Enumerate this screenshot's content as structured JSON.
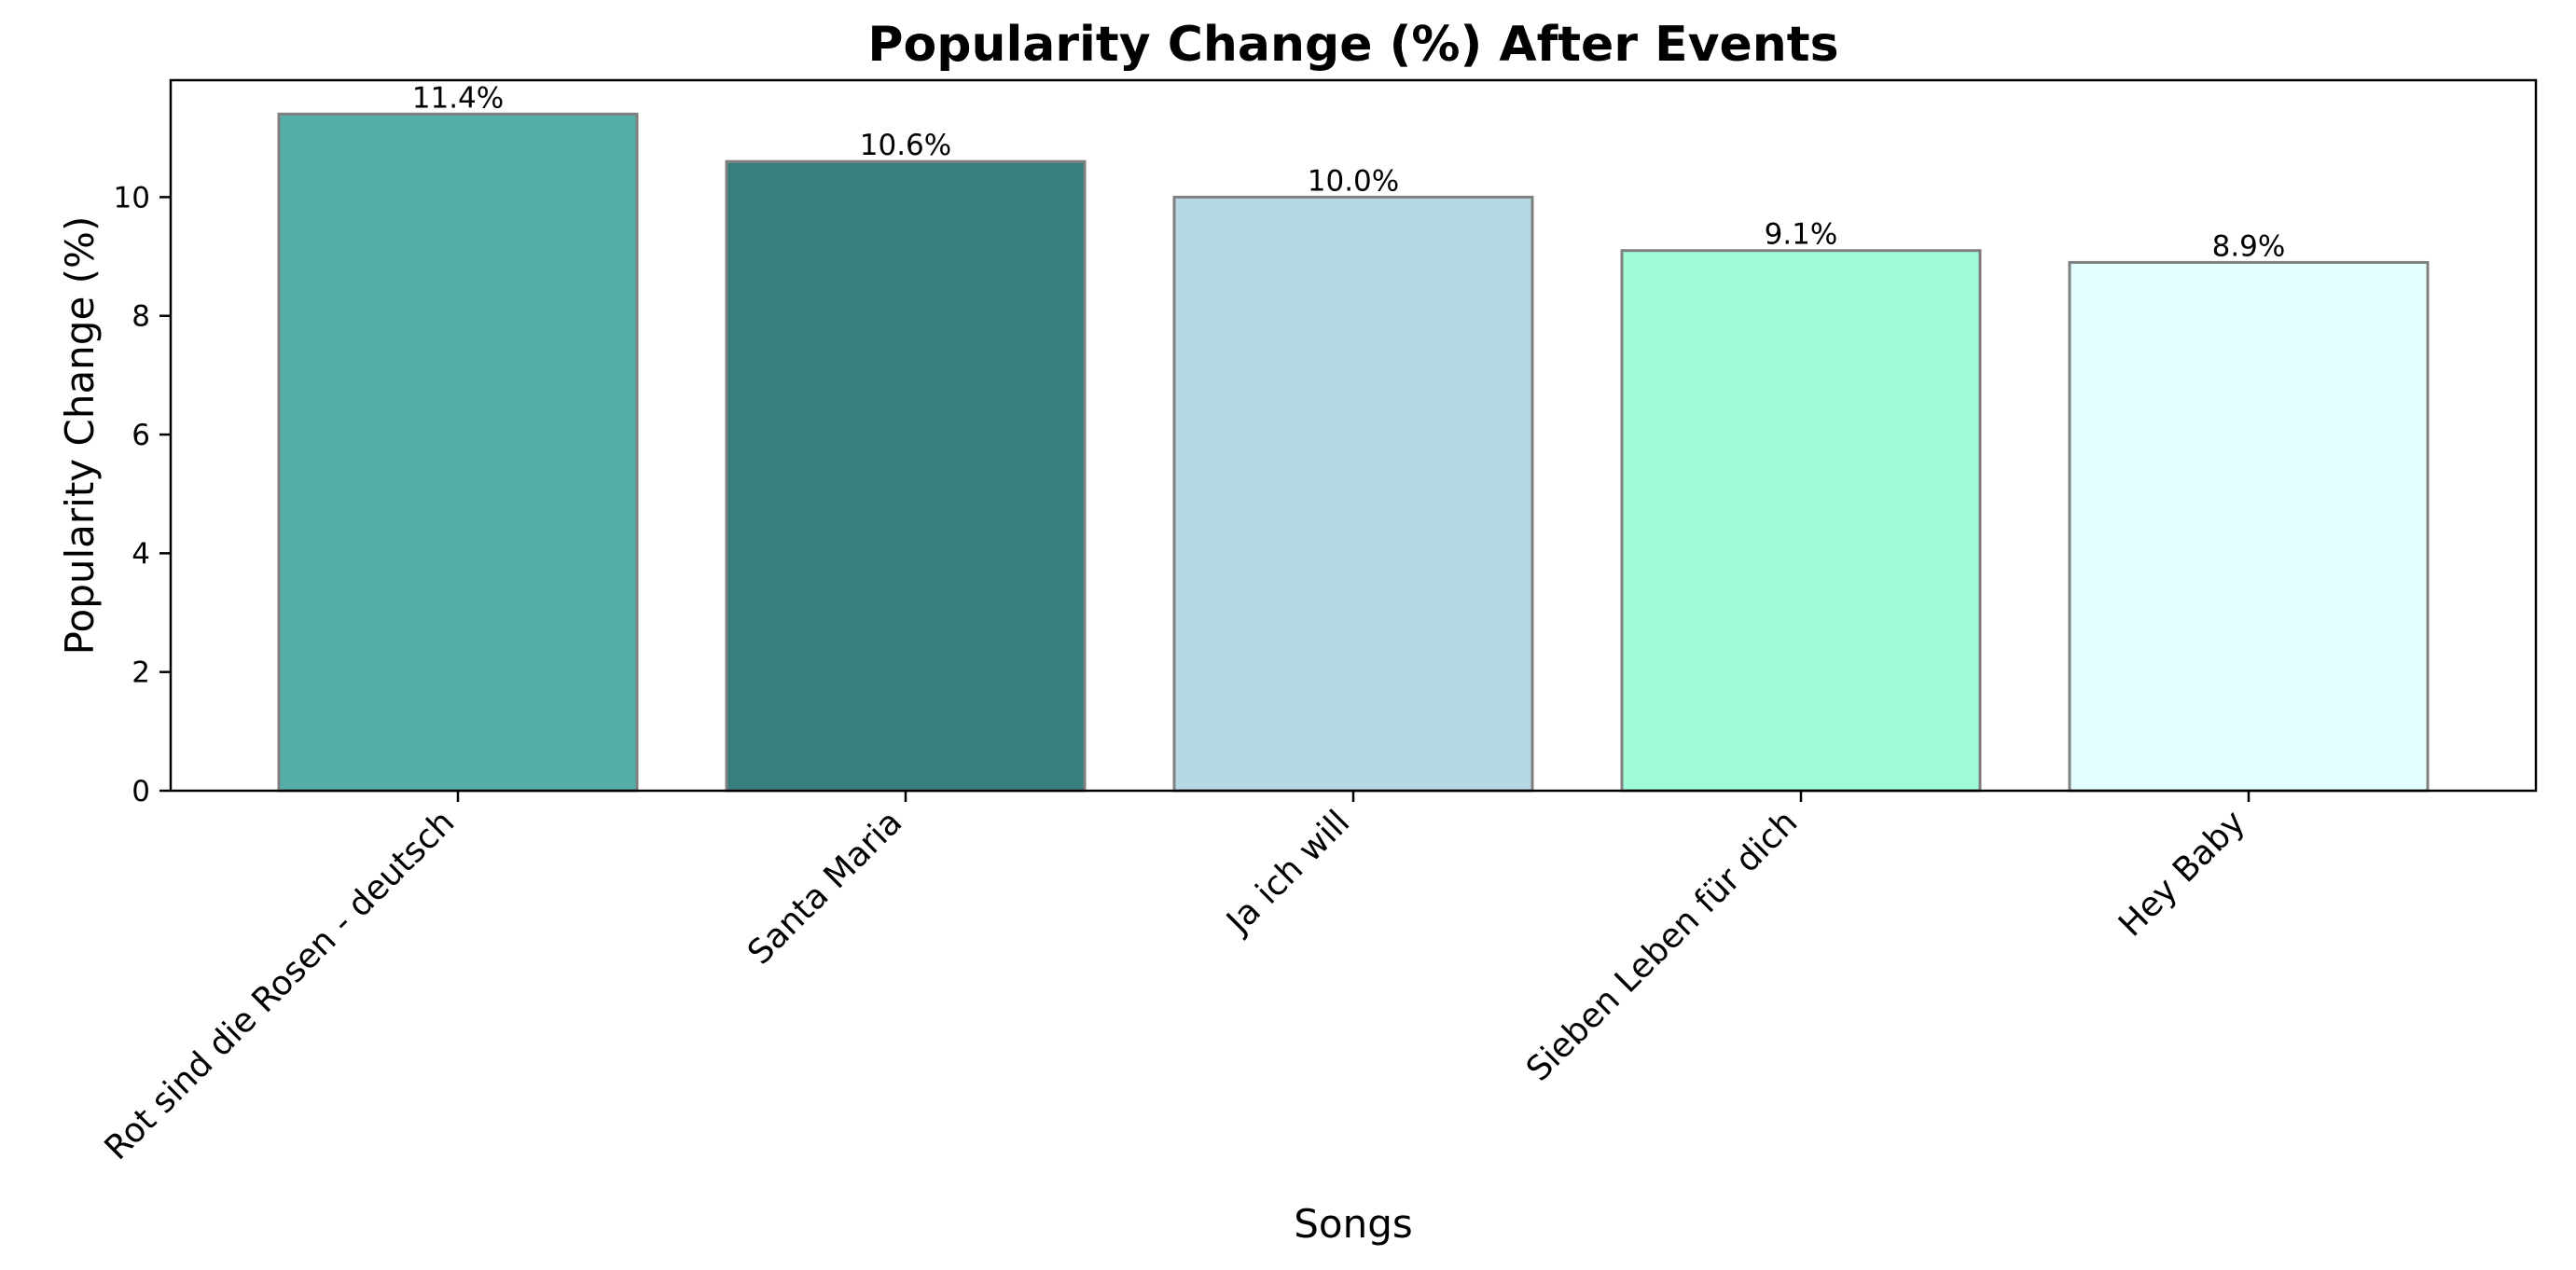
{
  "chart_data": {
    "type": "bar",
    "title": "Popularity Change (%) After Events",
    "xlabel": "Songs",
    "ylabel": "Popularity Change (%)",
    "categories": [
      "Rot sind die Rosen - deutsch",
      "Santa Maria",
      "Ja ich will",
      "Sieben Leben für dich",
      "Hey Baby"
    ],
    "values": [
      11.4,
      10.6,
      10.0,
      9.1,
      8.9
    ],
    "data_labels": [
      "11.4%",
      "10.6%",
      "10.0%",
      "9.1%",
      "8.9%"
    ],
    "colors": [
      "#55AFA8",
      "#377F7D",
      "#B6D8E3",
      "#A0FCD6",
      "#E3FFFF"
    ],
    "edge_color": "#808080",
    "yticks": [
      0,
      2,
      4,
      6,
      8,
      10
    ],
    "ylim": [
      0,
      11.97
    ],
    "grid": false,
    "legend": null
  }
}
